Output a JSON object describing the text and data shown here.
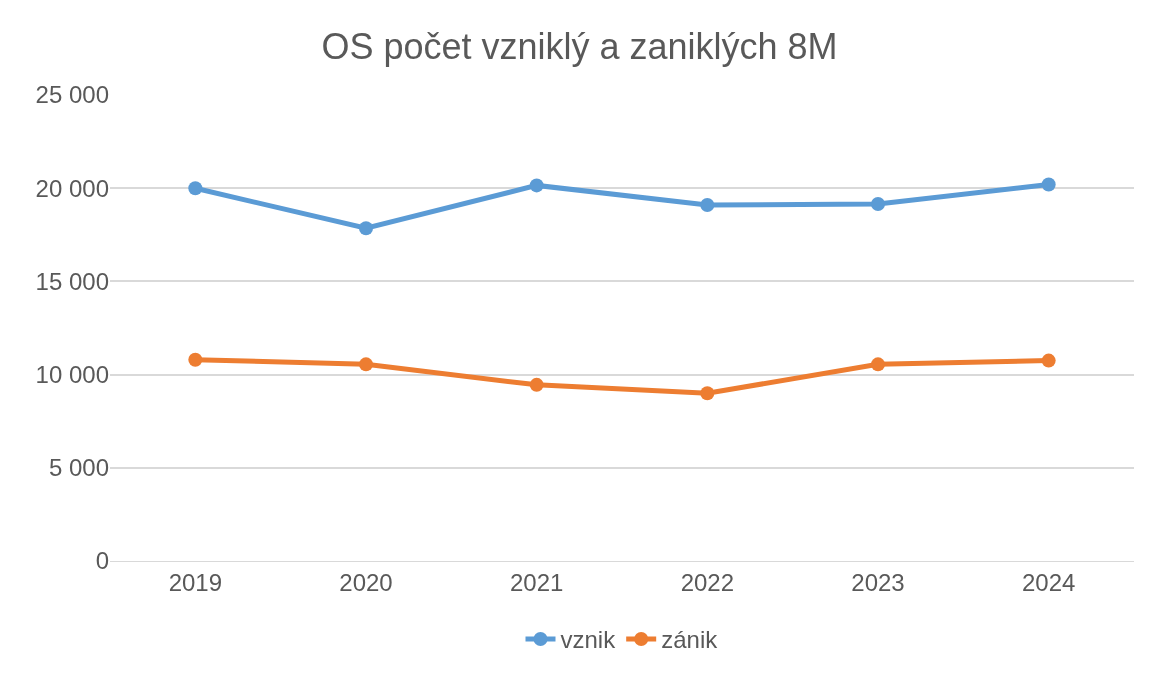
{
  "chart_data": {
    "type": "line",
    "title": "OS počet vzniklý a zaniklých 8M",
    "categories": [
      "2019",
      "2020",
      "2021",
      "2022",
      "2023",
      "2024"
    ],
    "series": [
      {
        "name": "vznik",
        "color": "#5b9bd5",
        "values": [
          20000,
          17850,
          20150,
          19100,
          19150,
          20200
        ]
      },
      {
        "name": "zánik",
        "color": "#ed7d31",
        "values": [
          10800,
          10550,
          9450,
          9000,
          10550,
          10750
        ]
      }
    ],
    "ylim": [
      0,
      25000
    ],
    "yticks": [
      {
        "value": 0,
        "label": "0"
      },
      {
        "value": 5000,
        "label": "5 000"
      },
      {
        "value": 10000,
        "label": "10 000"
      },
      {
        "value": 15000,
        "label": "15 000"
      },
      {
        "value": 20000,
        "label": "20 000"
      },
      {
        "value": 25000,
        "label": "25 000"
      }
    ],
    "grid": "y",
    "legend": "bottom",
    "marker": "circle",
    "line_style": "solid"
  }
}
